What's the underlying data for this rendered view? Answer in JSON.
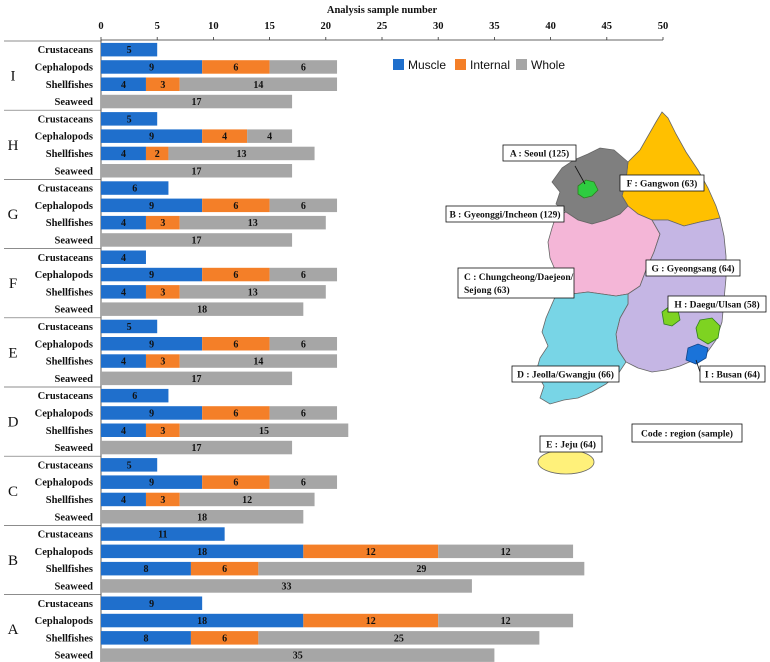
{
  "chart_data": {
    "type": "bar",
    "orientation": "horizontal",
    "stacked": true,
    "title": "Analysis sample number",
    "xlabel": "Analysis sample number",
    "xlim": [
      0,
      50
    ],
    "xticks": [
      0,
      5,
      10,
      15,
      20,
      25,
      30,
      35,
      40,
      45,
      50
    ],
    "series_names": [
      "Muscle",
      "Internal",
      "Whole"
    ],
    "colors": {
      "Muscle": "#1f6fcc",
      "Internal": "#f47f28",
      "Whole": "#a6a6a6"
    },
    "categories": [
      "Crustaceans",
      "Cephalopods",
      "Shellfishes",
      "Seaweed"
    ],
    "groups": [
      {
        "region": "I",
        "rows": [
          {
            "category": "Crustaceans",
            "muscle": 5,
            "internal": 0,
            "whole": 0
          },
          {
            "category": "Cephalopods",
            "muscle": 9,
            "internal": 6,
            "whole": 6
          },
          {
            "category": "Shellfishes",
            "muscle": 4,
            "internal": 3,
            "whole": 14
          },
          {
            "category": "Seaweed",
            "muscle": 0,
            "internal": 0,
            "whole": 17
          }
        ]
      },
      {
        "region": "H",
        "rows": [
          {
            "category": "Crustaceans",
            "muscle": 5,
            "internal": 0,
            "whole": 0
          },
          {
            "category": "Cephalopods",
            "muscle": 9,
            "internal": 4,
            "whole": 4
          },
          {
            "category": "Shellfishes",
            "muscle": 4,
            "internal": 2,
            "whole": 13
          },
          {
            "category": "Seaweed",
            "muscle": 0,
            "internal": 0,
            "whole": 17
          }
        ]
      },
      {
        "region": "G",
        "rows": [
          {
            "category": "Crustaceans",
            "muscle": 6,
            "internal": 0,
            "whole": 0
          },
          {
            "category": "Cephalopods",
            "muscle": 9,
            "internal": 6,
            "whole": 6
          },
          {
            "category": "Shellfishes",
            "muscle": 4,
            "internal": 3,
            "whole": 13
          },
          {
            "category": "Seaweed",
            "muscle": 0,
            "internal": 0,
            "whole": 17
          }
        ]
      },
      {
        "region": "F",
        "rows": [
          {
            "category": "Crustaceans",
            "muscle": 4,
            "internal": 0,
            "whole": 0
          },
          {
            "category": "Cephalopods",
            "muscle": 9,
            "internal": 6,
            "whole": 6
          },
          {
            "category": "Shellfishes",
            "muscle": 4,
            "internal": 3,
            "whole": 13
          },
          {
            "category": "Seaweed",
            "muscle": 0,
            "internal": 0,
            "whole": 18
          }
        ]
      },
      {
        "region": "E",
        "rows": [
          {
            "category": "Crustaceans",
            "muscle": 5,
            "internal": 0,
            "whole": 0
          },
          {
            "category": "Cephalopods",
            "muscle": 9,
            "internal": 6,
            "whole": 6
          },
          {
            "category": "Shellfishes",
            "muscle": 4,
            "internal": 3,
            "whole": 14
          },
          {
            "category": "Seaweed",
            "muscle": 0,
            "internal": 0,
            "whole": 17
          }
        ]
      },
      {
        "region": "D",
        "rows": [
          {
            "category": "Crustaceans",
            "muscle": 6,
            "internal": 0,
            "whole": 0
          },
          {
            "category": "Cephalopods",
            "muscle": 9,
            "internal": 6,
            "whole": 6
          },
          {
            "category": "Shellfishes",
            "muscle": 4,
            "internal": 3,
            "whole": 15
          },
          {
            "category": "Seaweed",
            "muscle": 0,
            "internal": 0,
            "whole": 17
          }
        ]
      },
      {
        "region": "C",
        "rows": [
          {
            "category": "Crustaceans",
            "muscle": 5,
            "internal": 0,
            "whole": 0
          },
          {
            "category": "Cephalopods",
            "muscle": 9,
            "internal": 6,
            "whole": 6
          },
          {
            "category": "Shellfishes",
            "muscle": 4,
            "internal": 3,
            "whole": 12
          },
          {
            "category": "Seaweed",
            "muscle": 0,
            "internal": 0,
            "whole": 18
          }
        ]
      },
      {
        "region": "B",
        "rows": [
          {
            "category": "Crustaceans",
            "muscle": 11,
            "internal": 0,
            "whole": 0
          },
          {
            "category": "Cephalopods",
            "muscle": 18,
            "internal": 12,
            "whole": 12
          },
          {
            "category": "Shellfishes",
            "muscle": 8,
            "internal": 6,
            "whole": 29
          },
          {
            "category": "Seaweed",
            "muscle": 0,
            "internal": 0,
            "whole": 33
          }
        ]
      },
      {
        "region": "A",
        "rows": [
          {
            "category": "Crustaceans",
            "muscle": 9,
            "internal": 0,
            "whole": 0
          },
          {
            "category": "Cephalopods",
            "muscle": 18,
            "internal": 12,
            "whole": 12
          },
          {
            "category": "Shellfishes",
            "muscle": 8,
            "internal": 6,
            "whole": 25
          },
          {
            "category": "Seaweed",
            "muscle": 0,
            "internal": 0,
            "whole": 35
          }
        ]
      }
    ]
  },
  "map": {
    "regions": [
      {
        "code": "A",
        "label": "A : Seoul (125)",
        "color": "#7f7f7f"
      },
      {
        "code": "B",
        "label": "B : Gyeonggi/Incheon (129)",
        "color": "#7f7f7f"
      },
      {
        "code": "C",
        "label_line1": "C : Chungcheong/Daejeon/",
        "label_line2": "Sejong (63)",
        "color": "#f4b6d7"
      },
      {
        "code": "D",
        "label": "D : Jeolla/Gwangju (66)",
        "color": "#78d5e6"
      },
      {
        "code": "E",
        "label": "E : Jeju (64)",
        "color": "#fff17a"
      },
      {
        "code": "F",
        "label": "F : Gangwon (63)",
        "color": "#ffc000"
      },
      {
        "code": "G",
        "label": "G : Gyeongsang (64)",
        "color": "#c5b6e4"
      },
      {
        "code": "H",
        "label": "H : Daegu/Ulsan (58)",
        "color": "#7ed321"
      },
      {
        "code": "I",
        "label": "I : Busan (64)",
        "color": "#1a73d9"
      }
    ],
    "code_note": "Code : region (sample)",
    "seoul_color": "#2ecc40"
  }
}
